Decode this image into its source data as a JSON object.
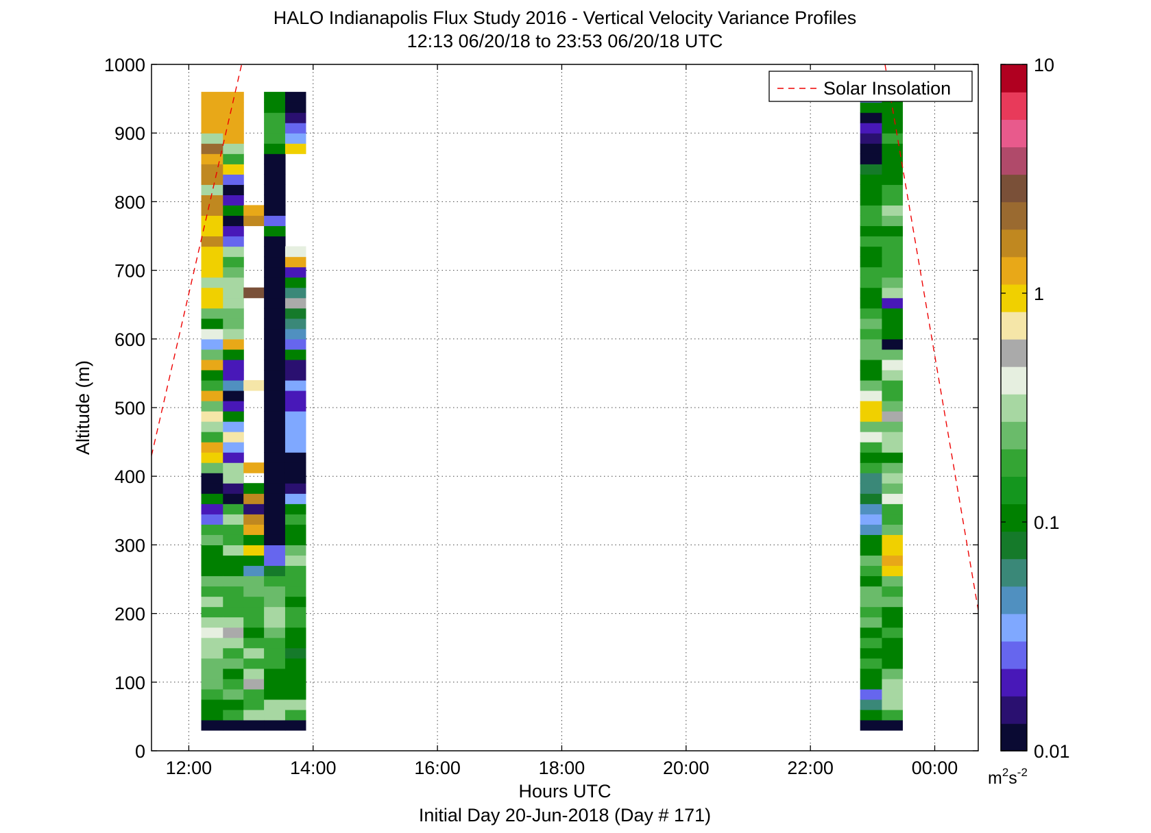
{
  "chart_data": {
    "type": "heatmap",
    "title": "HALO Indianapolis Flux Study 2016 - Vertical Velocity Variance Profiles",
    "subtitle": "12:13 06/20/18 to 23:53 06/20/18  UTC",
    "xlabel": "Hours UTC",
    "xlabel2": "Initial Day 20-Jun-2018 (Day # 171)",
    "ylabel": "Altitude (m)",
    "xlim": [
      11.4,
      24.7
    ],
    "ylim": [
      0,
      1000
    ],
    "x_ticks": [
      12,
      14,
      16,
      18,
      20,
      22,
      24
    ],
    "x_tick_labels": [
      "12:00",
      "14:00",
      "16:00",
      "18:00",
      "20:00",
      "22:00",
      "00:00"
    ],
    "y_ticks": [
      0,
      100,
      200,
      300,
      400,
      500,
      600,
      700,
      800,
      900,
      1000
    ],
    "y_tick_labels": [
      "0",
      "100",
      "200",
      "300",
      "400",
      "500",
      "600",
      "700",
      "800",
      "900",
      "1000"
    ],
    "grid": true,
    "gate_bottom": 30,
    "gate_height": 15,
    "colorbar": {
      "scale": "log",
      "min": 0.01,
      "max": 10,
      "tick_values": [
        0.01,
        0.1,
        1,
        10
      ],
      "tick_labels": [
        "0.01",
        "0.1",
        "1",
        "10"
      ],
      "unit_base": "m",
      "unit_sup1": "2",
      "unit_mid": "s",
      "unit_sup2": "-2",
      "colormap": [
        "#0a0a33",
        "#2a1070",
        "#4818b8",
        "#6666ee",
        "#7fa8ff",
        "#5090c0",
        "#3a8878",
        "#157a2a",
        "#008000",
        "#14961e",
        "#34a534",
        "#6abb6a",
        "#a7d7a2",
        "#e6efe0",
        "#aaaaaa",
        "#f5e6a8",
        "#f0d000",
        "#e8a818",
        "#c08820",
        "#9a6a30",
        "#7a5038",
        "#b04a6a",
        "#e85a8c",
        "#e83a5a",
        "#b00020"
      ]
    },
    "legend": {
      "location": "top-right",
      "entries": [
        "Solar Insolation"
      ]
    },
    "solar_insolation": [
      {
        "x": 11.4,
        "y": 430
      },
      {
        "x": 12.85,
        "y": 1000
      },
      {
        "x": 23.2,
        "y": 1000
      },
      {
        "x": 24.7,
        "y": 205
      }
    ],
    "palette": {
      "Na": "#0a0a33",
      "P": "#2a1070",
      "Pv": "#4818b8",
      "V": "#6666ee",
      "Lb": "#7fa8ff",
      "Sb": "#5090c0",
      "Tl": "#3a8878",
      "Dg": "#157a2a",
      "G": "#008000",
      "G2": "#14961e",
      "M": "#34a534",
      "L": "#6abb6a",
      "P2": "#a7d7a2",
      "W": "#e6efe0",
      "Gr": "#aaaaaa",
      "Cr": "#f5e6a8",
      "Y": "#f0d000",
      "O": "#e8a818",
      "Ok": "#c08820",
      "Br": "#9a6a30",
      "Db": "#7a5038"
    },
    "profiles": [
      {
        "start": 12.2,
        "end": 12.55,
        "cells": [
          "Na",
          "G",
          "G",
          "M",
          "L",
          "L",
          "L",
          "P2",
          "P2",
          "W",
          "P2",
          "M",
          "P2",
          "M",
          "L",
          "G",
          "G",
          "G",
          "L",
          "M",
          "V",
          "Pv",
          "G",
          "Na",
          "Na",
          "L",
          "Y",
          "O",
          "M",
          "P2",
          "Cr",
          "L",
          "O",
          "M",
          "G",
          "O",
          "L",
          "Lb",
          "W",
          "G",
          "L",
          "Y",
          "Y",
          "P2",
          "Y",
          "Y",
          "Y",
          "Ok",
          "Y",
          "Y",
          "Ok",
          "Ok",
          "P2",
          "Ok",
          "Ok",
          "O",
          "Br",
          "P2",
          "O",
          "O",
          "O",
          "O"
        ]
      },
      {
        "start": 12.55,
        "end": 12.88,
        "cells": [
          "Na",
          "M",
          "G",
          "L",
          "M",
          "G",
          "L",
          "M",
          "P2",
          "Gr",
          "P2",
          "M",
          "M",
          "M",
          "L",
          "G",
          "G",
          "P2",
          "M",
          "M",
          "P2",
          "M",
          "Na",
          "P",
          "P2",
          "P2",
          "Pv",
          "Lb",
          "Cr",
          "Lb",
          "G",
          "Pv",
          "Na",
          "Sb",
          "Pv",
          "Pv",
          "G",
          "O",
          "P2",
          "L",
          "L",
          "P2",
          "P2",
          "P2",
          "L",
          "M",
          "P2",
          "V",
          "Pv",
          "Na",
          "G",
          "Pv",
          "Na",
          "V",
          "Y",
          "M",
          "P2",
          "O",
          "O",
          "O",
          "O",
          "O"
        ]
      },
      {
        "start": 12.88,
        "end": 13.21,
        "cells": [
          "Na",
          "P2",
          "M",
          "M",
          "Gr",
          "P2",
          "M",
          "P2",
          "M",
          "G",
          "M",
          "M",
          "M",
          "L",
          "L",
          "Sb",
          "G",
          "Y",
          "G",
          "O",
          "Ok",
          "P",
          "Ok",
          "G",
          "null",
          "O",
          "null",
          "null",
          "null",
          "null",
          "null",
          "null",
          "null",
          "Cr",
          "null",
          "null",
          "null",
          "null",
          "null",
          "null",
          "null",
          "null",
          "Db",
          "null",
          "null",
          "null",
          "null",
          "null",
          "null",
          "Ok",
          "O",
          "null",
          "null",
          "null",
          "null",
          "null",
          "null",
          "null",
          "null",
          "null",
          "null",
          "null"
        ]
      },
      {
        "start": 13.21,
        "end": 13.55,
        "cells": [
          "Na",
          "P2",
          "P2",
          "G",
          "G",
          "G",
          "M",
          "M",
          "M",
          "L",
          "P2",
          "P2",
          "L",
          "L",
          "M",
          "Dg",
          "V",
          "V",
          "Na",
          "Na",
          "Na",
          "Na",
          "Na",
          "Na",
          "Na",
          "Na",
          "Na",
          "Na",
          "Na",
          "Na",
          "Na",
          "Na",
          "Na",
          "Na",
          "Na",
          "Na",
          "Na",
          "Na",
          "Na",
          "Na",
          "Na",
          "Na",
          "Na",
          "Na",
          "Na",
          "Na",
          "Na",
          "Na",
          "G",
          "V",
          "Na",
          "Na",
          "Na",
          "Na",
          "Na",
          "Na",
          "G",
          "M",
          "M",
          "M",
          "G",
          "G"
        ]
      },
      {
        "start": 13.55,
        "end": 13.88,
        "cells": [
          "Na",
          "M",
          "P2",
          "G",
          "G",
          "G",
          "G",
          "Dg",
          "G",
          "G",
          "M",
          "M",
          "G",
          "M",
          "M",
          "M",
          "P2",
          "L",
          "G",
          "G",
          "M",
          "G",
          "Lb",
          "P",
          "Na",
          "Na",
          "Na",
          "Lb",
          "Lb",
          "Lb",
          "Lb",
          "Pv",
          "Pv",
          "Lb",
          "P",
          "P",
          "G",
          "V",
          "Sb",
          "Tl",
          "Dg",
          "Gr",
          "Tl",
          "G",
          "Pv",
          "O",
          "W",
          "null",
          "null",
          "null",
          "null",
          "null",
          "null",
          "null",
          "null",
          "null",
          "Y",
          "Lb",
          "V",
          "P",
          "Na",
          "Na"
        ]
      },
      {
        "start": 22.8,
        "end": 23.15,
        "cells": [
          "Na",
          "G",
          "Tl",
          "V",
          "G",
          "G",
          "M",
          "G",
          "M",
          "G",
          "L",
          "M",
          "L",
          "L",
          "G",
          "M",
          "L",
          "G",
          "G",
          "Sb",
          "Lb",
          "Sb",
          "Dg",
          "Tl",
          "Tl",
          "M",
          "G",
          "M",
          "W",
          "L",
          "Y",
          "Y",
          "W",
          "L",
          "G",
          "G",
          "L",
          "L",
          "M",
          "L",
          "M",
          "G",
          "G",
          "M",
          "M",
          "G",
          "G",
          "M",
          "G",
          "M",
          "M",
          "G",
          "G",
          "G",
          "Dg",
          "Na",
          "Na",
          "P",
          "Pv",
          "Na",
          "G",
          "V"
        ]
      },
      {
        "start": 23.15,
        "end": 23.48,
        "cells": [
          "Na",
          "M",
          "P2",
          "P2",
          "P2",
          "L",
          "G",
          "G",
          "G",
          "M",
          "G",
          "G",
          "L",
          "M",
          "L",
          "Y",
          "O",
          "Y",
          "Y",
          "L",
          "M",
          "M",
          "W",
          "L",
          "P2",
          "L",
          "G",
          "P2",
          "P2",
          "L",
          "Gr",
          "L",
          "M",
          "M",
          "P2",
          "W",
          "L",
          "Na",
          "G",
          "G",
          "G",
          "Pv",
          "P2",
          "L",
          "M",
          "M",
          "M",
          "M",
          "G",
          "L",
          "P2",
          "M",
          "M",
          "G",
          "G",
          "G",
          "G",
          "M",
          "G",
          "G",
          "G",
          "G"
        ]
      }
    ]
  }
}
